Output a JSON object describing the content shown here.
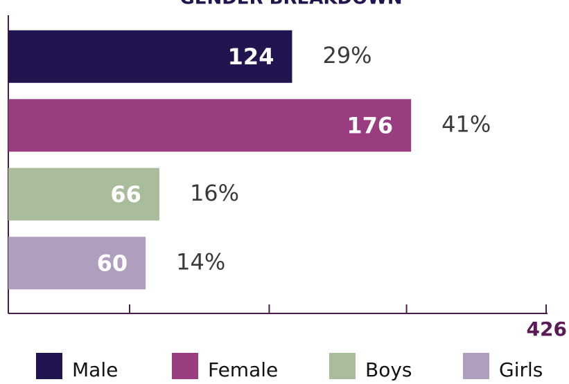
{
  "chart_data": {
    "type": "bar",
    "orientation": "horizontal",
    "title": "GENDER BREAKDOWN",
    "categories": [
      "Male",
      "Female",
      "Boys",
      "Girls"
    ],
    "values": [
      124,
      176,
      66,
      60
    ],
    "percent_labels": [
      "29%",
      "41%",
      "16%",
      "14%"
    ],
    "colors": [
      "#22154f",
      "#9a3d80",
      "#a9bd9d",
      "#b09ebe"
    ],
    "xlim": [
      0,
      235
    ],
    "xticks": [
      53,
      114,
      174,
      235
    ],
    "total_label": "426"
  }
}
